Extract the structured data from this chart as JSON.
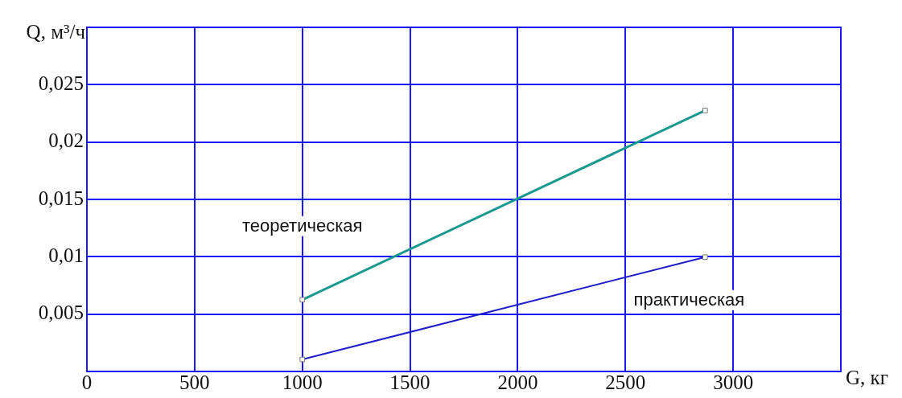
{
  "chart_data": {
    "type": "line",
    "xlabel": "G, кг",
    "ylabel": "Q, м³/ч",
    "xlim": [
      0,
      3500
    ],
    "xticks": [
      0,
      500,
      1000,
      1500,
      2000,
      2500,
      3000
    ],
    "ylim": [
      0,
      0.03
    ],
    "yticks": [
      {
        "value": 0.005,
        "label": "0,005"
      },
      {
        "value": 0.01,
        "label": "0,01"
      },
      {
        "value": 0.015,
        "label": "0,015"
      },
      {
        "value": 0.02,
        "label": "0,02"
      },
      {
        "value": 0.025,
        "label": "0,025"
      }
    ],
    "x": [
      1000,
      2870
    ],
    "grid": true,
    "legend": false,
    "marker": "square",
    "line_style": "solid",
    "series": [
      {
        "name": "теоретическая",
        "color": "#1a9a8f",
        "values": [
          0.00625,
          0.02275
        ]
      },
      {
        "name": "практическая",
        "color": "#2020c8",
        "values": [
          0.00105,
          0.00997
        ]
      }
    ]
  }
}
